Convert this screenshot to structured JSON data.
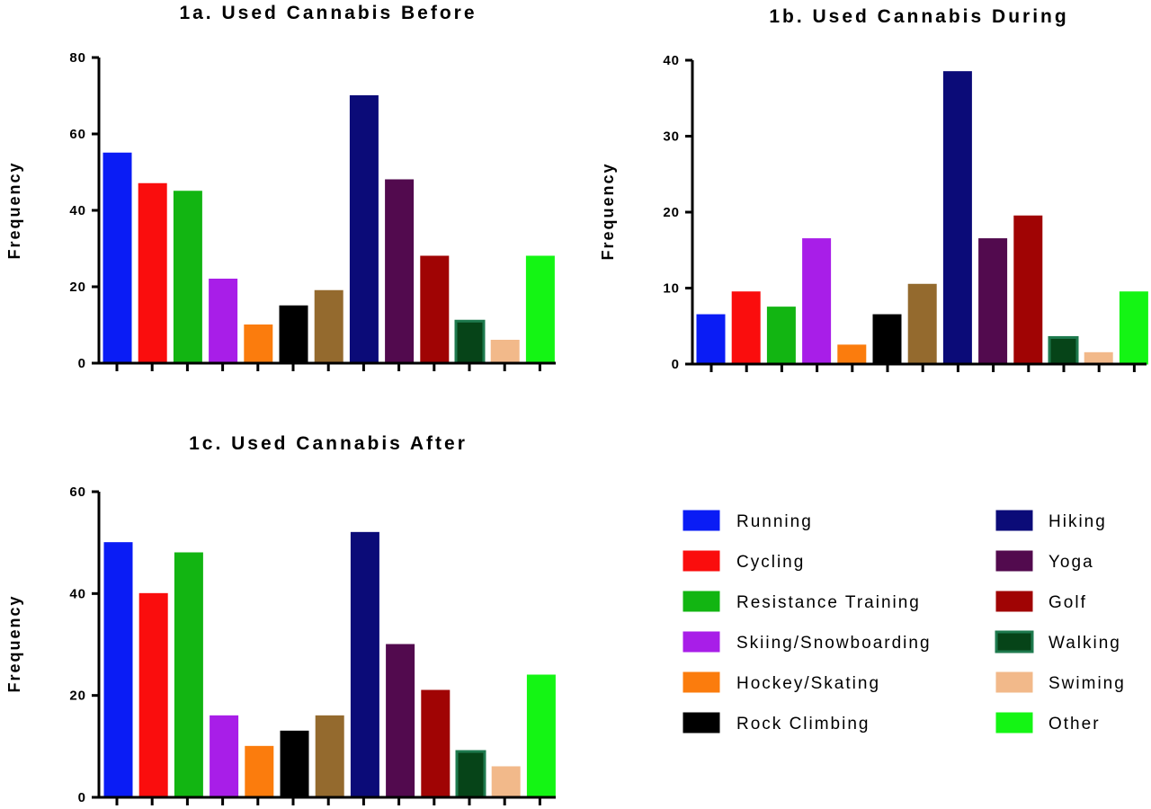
{
  "legend": {
    "items": [
      {
        "label": "Running",
        "color": "#0a1cf5",
        "border": "#0a1cf5"
      },
      {
        "label": "Cycling",
        "color": "#fa0d0d",
        "border": "#fa0d0d"
      },
      {
        "label": "Resistance Training",
        "color": "#12b512",
        "border": "#12b512"
      },
      {
        "label": "Skiing/Snowboarding",
        "color": "#a81ee8",
        "border": "#a81ee8"
      },
      {
        "label": "Hockey/Skating",
        "color": "#fb7c0d",
        "border": "#fb7c0d"
      },
      {
        "label": "Rock Climbing",
        "color": "#000000",
        "border": "#000000"
      },
      {
        "label": "Hiking",
        "color": "#0b0b78",
        "border": "#0b0b78"
      },
      {
        "label": "Yoga",
        "color": "#520a4e",
        "border": "#520a4e"
      },
      {
        "label": "Golf",
        "color": "#a00404",
        "border": "#a00404"
      },
      {
        "label": "Walking",
        "color": "#064418",
        "border": "#1e7a4e"
      },
      {
        "label": "Swiming",
        "color": "#f2b98a",
        "border": "#f2b98a"
      },
      {
        "label": "Other",
        "color": "#14f514",
        "border": "#14f514"
      }
    ]
  },
  "chart_data": [
    {
      "type": "bar",
      "title": "1a. Used Cannabis Before",
      "xlabel": "",
      "ylabel": "Frequency",
      "ylim": [
        0,
        80
      ],
      "yticks": [
        0,
        20,
        40,
        60,
        80
      ],
      "extra_bar_color": "#946a2e",
      "categories": [
        "Running",
        "Cycling",
        "Resistance Training",
        "Skiing/Snowboarding",
        "Hockey/Skating",
        "Rock Climbing",
        "",
        "Hiking",
        "Yoga",
        "Golf",
        "Walking",
        "Swiming",
        "Other"
      ],
      "values": [
        55,
        47,
        45,
        22,
        10,
        15,
        19,
        70,
        48,
        28,
        11,
        6,
        28
      ]
    },
    {
      "type": "bar",
      "title": "1b. Used Cannabis During",
      "xlabel": "",
      "ylabel": "Frequency",
      "ylim": [
        0,
        40
      ],
      "yticks": [
        0,
        10,
        20,
        30,
        40
      ],
      "extra_bar_color": "#946a2e",
      "categories": [
        "Running",
        "Cycling",
        "Resistance Training",
        "Skiing/Snowboarding",
        "Hockey/Skating",
        "Rock Climbing",
        "",
        "Hiking",
        "Yoga",
        "Golf",
        "Walking",
        "Swiming",
        "Other"
      ],
      "values": [
        6.5,
        9.5,
        7.5,
        16.5,
        2.5,
        6.5,
        10.5,
        38.5,
        16.5,
        19.5,
        3.5,
        1.5,
        9.5
      ]
    },
    {
      "type": "bar",
      "title": "1c. Used Cannabis After",
      "xlabel": "",
      "ylabel": "Frequency",
      "ylim": [
        0,
        60
      ],
      "yticks": [
        0,
        20,
        40,
        60
      ],
      "extra_bar_color": "#946a2e",
      "categories": [
        "Running",
        "Cycling",
        "Resistance Training",
        "Skiing/Snowboarding",
        "Hockey/Skating",
        "Rock Climbing",
        "",
        "Hiking",
        "Yoga",
        "Golf",
        "Walking",
        "Swiming",
        "Other"
      ],
      "values": [
        50,
        40,
        48,
        16,
        10,
        13,
        16,
        52,
        30,
        21,
        9,
        6,
        24
      ]
    }
  ]
}
